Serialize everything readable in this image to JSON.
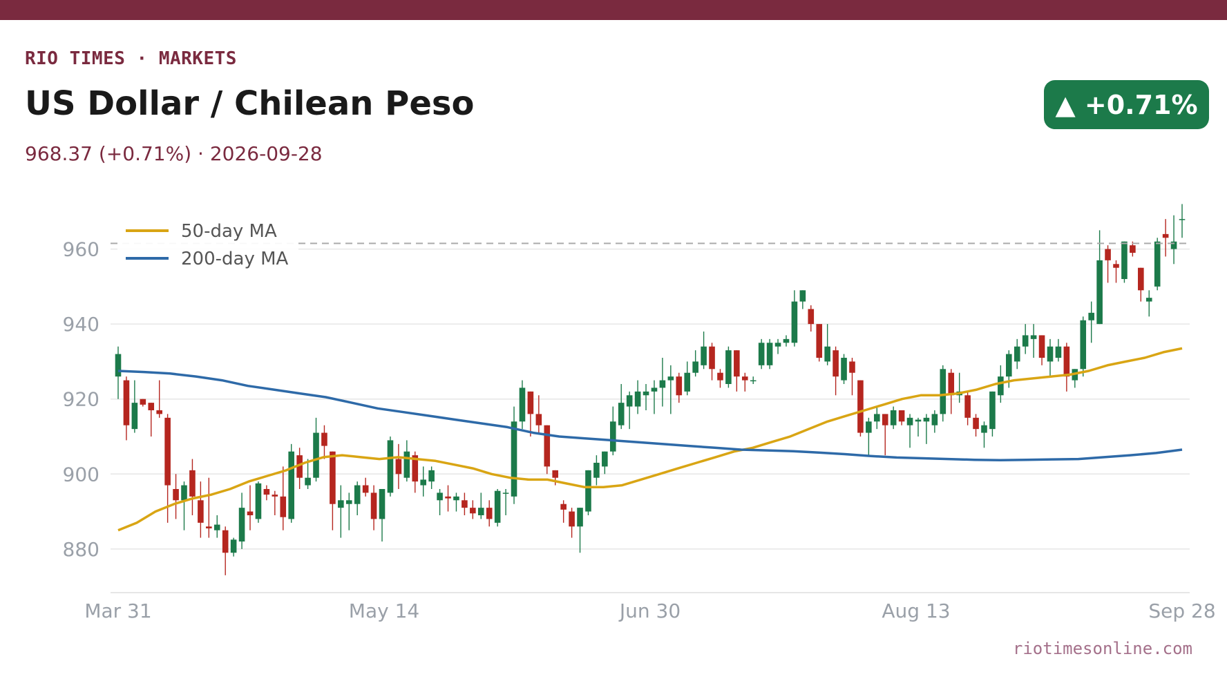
{
  "header": {
    "kicker": "RIO TIMES · MARKETS",
    "title": "US Dollar / Chilean Peso",
    "subtitle": "968.37 (+0.71%)  ·  2026-09-28",
    "change_badge": "▲ +0.71%"
  },
  "footer": {
    "source": "riotimesonline.com"
  },
  "colors": {
    "brand": "#7a2a3f",
    "up": "#1c7a4a",
    "down": "#b5261f",
    "ma50": "#d9a514",
    "ma200": "#2e6aa8",
    "reference_line": "#aaaaaa"
  },
  "chart_data": {
    "type": "candlestick",
    "title": "",
    "xlabel": "",
    "ylabel": "",
    "ylim": [
      868,
      973
    ],
    "y_ticks": [
      880,
      900,
      920,
      940,
      960
    ],
    "x_ticks": [
      "Mar 31",
      "May 14",
      "Jun 30",
      "Aug 13",
      "Sep 28"
    ],
    "grid": "horizontal",
    "legend_position": "top-left",
    "reference_line": 961.5,
    "series": [
      {
        "name": "50-day MA",
        "kind": "line",
        "color": "#d9a514",
        "values": [
          885,
          887,
          890,
          892,
          893.5,
          894.5,
          896,
          898,
          899.5,
          901,
          903,
          904.5,
          905,
          904.5,
          904,
          904.5,
          904,
          903.5,
          902.5,
          901.5,
          900,
          899,
          898.5,
          898.5,
          897.5,
          896.5,
          896.5,
          897,
          898.5,
          900,
          901.5,
          903,
          904.5,
          906,
          907,
          908.5,
          910,
          912,
          914,
          915.5,
          917,
          918.5,
          920,
          921,
          921,
          921.5,
          922.5,
          924,
          925,
          925.5,
          926,
          926.5,
          927.5,
          929,
          930,
          931,
          932.5,
          933.5
        ]
      },
      {
        "name": "200-day MA",
        "kind": "line",
        "color": "#2e6aa8",
        "values": [
          927.5,
          927.2,
          926.8,
          926,
          925,
          923.5,
          922.5,
          921.5,
          920.5,
          919,
          917.5,
          916.5,
          915.5,
          914.5,
          913.5,
          912.5,
          911,
          910,
          909.5,
          909,
          908.5,
          908,
          907.5,
          907,
          906.5,
          906.3,
          906.1,
          905.7,
          905.3,
          904.8,
          904.4,
          904.2,
          904,
          903.8,
          903.7,
          903.8,
          903.9,
          904,
          904.5,
          905,
          905.6,
          906.5
        ]
      },
      {
        "name": "USD/CLP",
        "kind": "candles",
        "candles": [
          {
            "o": 926,
            "h": 934,
            "l": 920,
            "c": 932
          },
          {
            "o": 925,
            "h": 926,
            "l": 909,
            "c": 913
          },
          {
            "o": 912,
            "h": 925,
            "l": 911,
            "c": 919
          },
          {
            "o": 920,
            "h": 920,
            "l": 918,
            "c": 918.5
          },
          {
            "o": 919,
            "h": 919,
            "l": 910,
            "c": 917
          },
          {
            "o": 917,
            "h": 925,
            "l": 915,
            "c": 916
          },
          {
            "o": 915,
            "h": 916,
            "l": 887,
            "c": 897
          },
          {
            "o": 896,
            "h": 900,
            "l": 888,
            "c": 893
          },
          {
            "o": 893,
            "h": 898,
            "l": 885,
            "c": 897
          },
          {
            "o": 901,
            "h": 904,
            "l": 889,
            "c": 894
          },
          {
            "o": 893,
            "h": 898,
            "l": 883,
            "c": 887
          },
          {
            "o": 886,
            "h": 899,
            "l": 883,
            "c": 885.5
          },
          {
            "o": 885,
            "h": 889,
            "l": 883,
            "c": 886.5
          },
          {
            "o": 885,
            "h": 886,
            "l": 873,
            "c": 879
          },
          {
            "o": 879,
            "h": 883,
            "l": 878,
            "c": 882.5
          },
          {
            "o": 882,
            "h": 895,
            "l": 880,
            "c": 891
          },
          {
            "o": 890,
            "h": 897,
            "l": 885,
            "c": 889
          },
          {
            "o": 888,
            "h": 898,
            "l": 887,
            "c": 897.5
          },
          {
            "o": 896,
            "h": 897,
            "l": 893,
            "c": 894.5
          },
          {
            "o": 894.5,
            "h": 895.5,
            "l": 889,
            "c": 894
          },
          {
            "o": 894,
            "h": 902,
            "l": 885,
            "c": 888.5
          },
          {
            "o": 888,
            "h": 908,
            "l": 887,
            "c": 906
          },
          {
            "o": 905,
            "h": 907,
            "l": 896,
            "c": 899
          },
          {
            "o": 897,
            "h": 904,
            "l": 896,
            "c": 899
          },
          {
            "o": 899,
            "h": 915,
            "l": 898,
            "c": 911
          },
          {
            "o": 911,
            "h": 913,
            "l": 904,
            "c": 907.5
          },
          {
            "o": 906,
            "h": 906,
            "l": 885,
            "c": 892
          },
          {
            "o": 891,
            "h": 897,
            "l": 883,
            "c": 893
          },
          {
            "o": 892,
            "h": 895,
            "l": 885,
            "c": 893
          },
          {
            "o": 892,
            "h": 898,
            "l": 889,
            "c": 897
          },
          {
            "o": 897,
            "h": 899,
            "l": 894,
            "c": 895
          },
          {
            "o": 895,
            "h": 897,
            "l": 885,
            "c": 888
          },
          {
            "o": 888,
            "h": 896,
            "l": 882,
            "c": 896
          },
          {
            "o": 895,
            "h": 910,
            "l": 894,
            "c": 909
          },
          {
            "o": 904,
            "h": 908,
            "l": 896,
            "c": 900
          },
          {
            "o": 899,
            "h": 909,
            "l": 898,
            "c": 906
          },
          {
            "o": 905,
            "h": 906,
            "l": 895,
            "c": 898
          },
          {
            "o": 897,
            "h": 902,
            "l": 894,
            "c": 898.5
          },
          {
            "o": 898,
            "h": 902,
            "l": 896,
            "c": 901
          },
          {
            "o": 893,
            "h": 896,
            "l": 889,
            "c": 895
          },
          {
            "o": 894,
            "h": 897,
            "l": 890,
            "c": 893.5
          },
          {
            "o": 893,
            "h": 895,
            "l": 890,
            "c": 894
          },
          {
            "o": 893,
            "h": 895,
            "l": 889,
            "c": 891
          },
          {
            "o": 891,
            "h": 893,
            "l": 888,
            "c": 889.5
          },
          {
            "o": 889,
            "h": 895,
            "l": 888,
            "c": 891
          },
          {
            "o": 891,
            "h": 893,
            "l": 886,
            "c": 888
          },
          {
            "o": 887,
            "h": 896,
            "l": 886,
            "c": 895.5
          },
          {
            "o": 895,
            "h": 896,
            "l": 889,
            "c": 895
          },
          {
            "o": 894,
            "h": 918,
            "l": 892,
            "c": 914
          },
          {
            "o": 914,
            "h": 925,
            "l": 912,
            "c": 923
          },
          {
            "o": 922,
            "h": 922,
            "l": 910,
            "c": 916
          },
          {
            "o": 916,
            "h": 921,
            "l": 911,
            "c": 913
          },
          {
            "o": 913,
            "h": 913,
            "l": 900,
            "c": 902
          },
          {
            "o": 901,
            "h": 901,
            "l": 897,
            "c": 899
          },
          {
            "o": 892,
            "h": 893,
            "l": 887,
            "c": 890.5
          },
          {
            "o": 890,
            "h": 891,
            "l": 883,
            "c": 886
          },
          {
            "o": 886,
            "h": 891,
            "l": 879,
            "c": 891
          },
          {
            "o": 890,
            "h": 901,
            "l": 889,
            "c": 901
          },
          {
            "o": 899,
            "h": 905,
            "l": 897,
            "c": 903
          },
          {
            "o": 902,
            "h": 906,
            "l": 900,
            "c": 906
          },
          {
            "o": 906,
            "h": 918,
            "l": 905,
            "c": 914
          },
          {
            "o": 913,
            "h": 924,
            "l": 912,
            "c": 919
          },
          {
            "o": 918,
            "h": 922,
            "l": 912,
            "c": 921
          },
          {
            "o": 918,
            "h": 925,
            "l": 916,
            "c": 922
          },
          {
            "o": 921,
            "h": 924,
            "l": 917,
            "c": 922
          },
          {
            "o": 922,
            "h": 925,
            "l": 916,
            "c": 923
          },
          {
            "o": 923,
            "h": 931,
            "l": 918,
            "c": 925
          },
          {
            "o": 925,
            "h": 929,
            "l": 916,
            "c": 926
          },
          {
            "o": 926,
            "h": 927,
            "l": 919,
            "c": 921
          },
          {
            "o": 922,
            "h": 930,
            "l": 921,
            "c": 927
          },
          {
            "o": 927,
            "h": 933,
            "l": 926,
            "c": 930
          },
          {
            "o": 929,
            "h": 938,
            "l": 928,
            "c": 934
          },
          {
            "o": 934,
            "h": 935,
            "l": 925,
            "c": 928
          },
          {
            "o": 927,
            "h": 928,
            "l": 923,
            "c": 925
          },
          {
            "o": 924,
            "h": 934,
            "l": 923,
            "c": 933
          },
          {
            "o": 933,
            "h": 933,
            "l": 922,
            "c": 926
          },
          {
            "o": 926,
            "h": 927,
            "l": 922,
            "c": 925
          },
          {
            "o": 925,
            "h": 926,
            "l": 924,
            "c": 925
          },
          {
            "o": 929,
            "h": 936,
            "l": 928,
            "c": 935
          },
          {
            "o": 929,
            "h": 936,
            "l": 928,
            "c": 935
          },
          {
            "o": 934,
            "h": 936,
            "l": 932,
            "c": 935
          },
          {
            "o": 935,
            "h": 937,
            "l": 934,
            "c": 936
          },
          {
            "o": 935,
            "h": 949,
            "l": 934,
            "c": 946
          },
          {
            "o": 946,
            "h": 949,
            "l": 944,
            "c": 949
          },
          {
            "o": 944,
            "h": 945,
            "l": 938,
            "c": 940
          },
          {
            "o": 940,
            "h": 940,
            "l": 930,
            "c": 931
          },
          {
            "o": 930,
            "h": 940,
            "l": 929,
            "c": 934
          },
          {
            "o": 933,
            "h": 934,
            "l": 921,
            "c": 926
          },
          {
            "o": 925,
            "h": 932,
            "l": 924,
            "c": 931
          },
          {
            "o": 930,
            "h": 931,
            "l": 921,
            "c": 927
          },
          {
            "o": 925,
            "h": 925,
            "l": 910,
            "c": 911
          },
          {
            "o": 911,
            "h": 915,
            "l": 905,
            "c": 914
          },
          {
            "o": 914,
            "h": 918,
            "l": 912,
            "c": 916
          },
          {
            "o": 916,
            "h": 916,
            "l": 905,
            "c": 913
          },
          {
            "o": 913,
            "h": 918,
            "l": 912,
            "c": 917
          },
          {
            "o": 917,
            "h": 917,
            "l": 913,
            "c": 914
          },
          {
            "o": 913,
            "h": 916,
            "l": 907,
            "c": 915
          },
          {
            "o": 914,
            "h": 915,
            "l": 910,
            "c": 914.5
          },
          {
            "o": 914,
            "h": 916,
            "l": 908,
            "c": 915
          },
          {
            "o": 913,
            "h": 917,
            "l": 911,
            "c": 916
          },
          {
            "o": 916,
            "h": 929,
            "l": 914,
            "c": 928
          },
          {
            "o": 927,
            "h": 928,
            "l": 916,
            "c": 921
          },
          {
            "o": 921,
            "h": 927,
            "l": 919,
            "c": 922
          },
          {
            "o": 921,
            "h": 922,
            "l": 913,
            "c": 915
          },
          {
            "o": 915,
            "h": 916,
            "l": 910,
            "c": 912
          },
          {
            "o": 911,
            "h": 914,
            "l": 907,
            "c": 913
          },
          {
            "o": 912,
            "h": 922,
            "l": 910,
            "c": 922
          },
          {
            "o": 921,
            "h": 929,
            "l": 919,
            "c": 926
          },
          {
            "o": 926,
            "h": 933,
            "l": 923,
            "c": 932
          },
          {
            "o": 930,
            "h": 936,
            "l": 928,
            "c": 934
          },
          {
            "o": 934,
            "h": 940,
            "l": 932,
            "c": 937
          },
          {
            "o": 936,
            "h": 940,
            "l": 931,
            "c": 937
          },
          {
            "o": 937,
            "h": 937,
            "l": 929,
            "c": 931
          },
          {
            "o": 930,
            "h": 936,
            "l": 926,
            "c": 934
          },
          {
            "o": 931,
            "h": 936,
            "l": 930,
            "c": 934
          },
          {
            "o": 934,
            "h": 935,
            "l": 922,
            "c": 926
          },
          {
            "o": 925,
            "h": 928,
            "l": 923,
            "c": 928
          },
          {
            "o": 928,
            "h": 942,
            "l": 926,
            "c": 941
          },
          {
            "o": 941,
            "h": 946,
            "l": 935,
            "c": 943
          },
          {
            "o": 940,
            "h": 965,
            "l": 940,
            "c": 957
          },
          {
            "o": 960,
            "h": 961,
            "l": 951,
            "c": 957
          },
          {
            "o": 956,
            "h": 957,
            "l": 951,
            "c": 955
          },
          {
            "o": 952,
            "h": 962,
            "l": 951,
            "c": 962
          },
          {
            "o": 961,
            "h": 962,
            "l": 958,
            "c": 959
          },
          {
            "o": 955,
            "h": 955,
            "l": 946,
            "c": 949
          },
          {
            "o": 946,
            "h": 949,
            "l": 942,
            "c": 947
          },
          {
            "o": 950,
            "h": 963,
            "l": 949,
            "c": 962
          },
          {
            "o": 964,
            "h": 968,
            "l": 958,
            "c": 963
          },
          {
            "o": 960,
            "h": 969,
            "l": 956,
            "c": 962
          },
          {
            "o": 968,
            "h": 972,
            "l": 963,
            "c": 968
          }
        ]
      }
    ]
  }
}
